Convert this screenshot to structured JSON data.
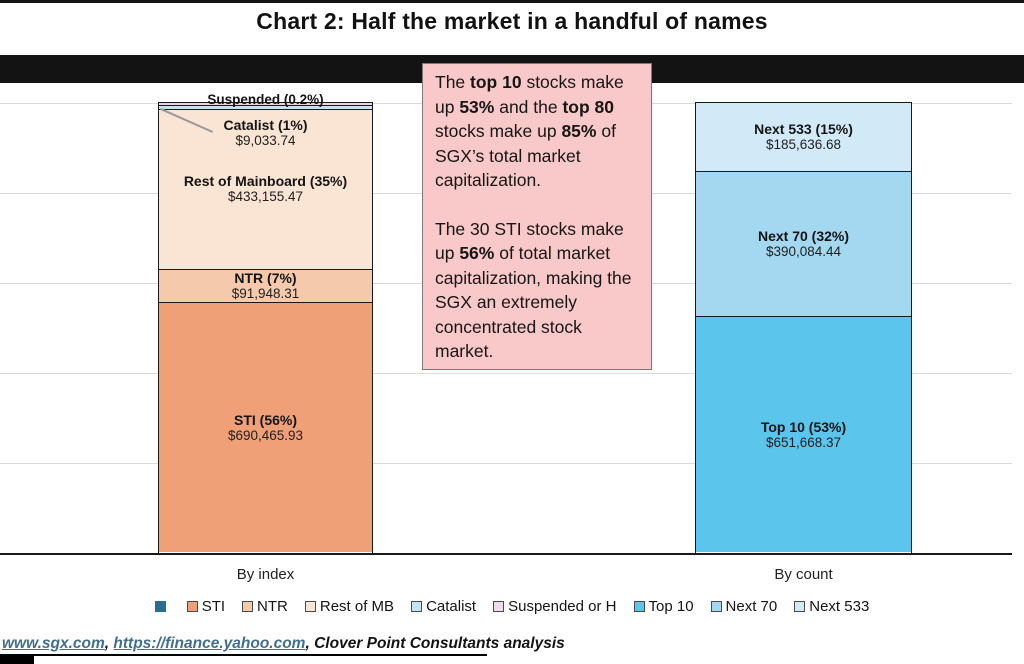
{
  "title": "Chart 2: Half the market in a handful of names",
  "annotation": {
    "bg_color": "#F9C8C8",
    "paragraphs": [
      [
        {
          "t": "The ",
          "b": false
        },
        {
          "t": "top 10",
          "b": true
        },
        {
          "t": " stocks make up ",
          "b": false
        },
        {
          "t": "53%",
          "b": true
        },
        {
          "t": " and the ",
          "b": false
        },
        {
          "t": "top 80",
          "b": true
        },
        {
          "t": " stocks make up ",
          "b": false
        },
        {
          "t": "85%",
          "b": true
        },
        {
          "t": " of SGX’s total market capitalization.",
          "b": false
        }
      ],
      [
        {
          "t": "The 30 STI stocks make up ",
          "b": false
        },
        {
          "t": "56%",
          "b": true
        },
        {
          "t": " of total market capitalization, making the SGX an extremely concentrated stock market.",
          "b": false
        }
      ]
    ]
  },
  "bars": {
    "by_index": {
      "axis_label": "By index",
      "suspended_label": "Suspended (0.2%)",
      "catalist": {
        "name": "Catalist (1%)",
        "value": "$9,033.74"
      },
      "rest_of_mainboard": {
        "name": "Rest of Mainboard (35%)",
        "value": "$433,155.47"
      },
      "ntr": {
        "name": "NTR (7%)",
        "value": "$91,948.31"
      },
      "sti": {
        "name": "STI (56%)",
        "value": "$690,465.93"
      }
    },
    "by_count": {
      "axis_label": "By count",
      "next533": {
        "name": "Next 533 (15%)",
        "value": "$185,636.68"
      },
      "next70": {
        "name": "Next 70 (32%)",
        "value": "$390,084.44"
      },
      "top10": {
        "name": "Top 10 (53%)",
        "value": "$651,668.37"
      }
    }
  },
  "legend": {
    "items": [
      {
        "label": "",
        "color": "#2A6D92"
      },
      {
        "label": "STI",
        "color": "#EFA077"
      },
      {
        "label": "NTR",
        "color": "#F5C9AB"
      },
      {
        "label": "Rest of MB",
        "color": "#FAE4D3"
      },
      {
        "label": "Catalist",
        "color": "#C6E3F1"
      },
      {
        "label": "Suspended or H",
        "color": "#EFD9EB"
      },
      {
        "label": "Top 10",
        "color": "#5CC5EC"
      },
      {
        "label": "Next 70",
        "color": "#A3D8F0"
      },
      {
        "label": "Next 533",
        "color": "#D2EAF8"
      }
    ]
  },
  "source": {
    "link1": "www.sgx.com",
    "sep1": ", ",
    "link2": "https://finance.yahoo.com",
    "sep2": ", ",
    "credit": "Clover Point Consultants analysis"
  },
  "chart_data": {
    "type": "bar",
    "stacked": true,
    "title": "Chart 2: Half the market in a handful of names",
    "categories": [
      "By index",
      "By count"
    ],
    "ylabel": "",
    "xlabel": "",
    "ylim_percent": [
      0,
      100
    ],
    "gridlines_percent": [
      0,
      20,
      40,
      60,
      80,
      100
    ],
    "series": [
      {
        "name": "STI",
        "category": "By index",
        "percent": 56,
        "value": 690465.93,
        "color": "#EFA077"
      },
      {
        "name": "NTR",
        "category": "By index",
        "percent": 7,
        "value": 91948.31,
        "color": "#F5C9AB"
      },
      {
        "name": "Rest of Mainboard",
        "category": "By index",
        "percent": 35,
        "value": 433155.47,
        "color": "#FAE4D3"
      },
      {
        "name": "Catalist",
        "category": "By index",
        "percent": 1,
        "value": 9033.74,
        "color": "#C6E3F1"
      },
      {
        "name": "Suspended",
        "category": "By index",
        "percent": 0.2,
        "color": "#EDD2E3"
      },
      {
        "name": "Top 10",
        "category": "By count",
        "percent": 53,
        "value": 651668.37,
        "color": "#5CC5EC"
      },
      {
        "name": "Next 70",
        "category": "By count",
        "percent": 32,
        "value": 390084.44,
        "color": "#A3D8F0"
      },
      {
        "name": "Next 533",
        "category": "By count",
        "percent": 15,
        "value": 185636.68,
        "color": "#D2EAF8"
      }
    ],
    "annotation_text": "The top 10 stocks make up 53% and the top 80 stocks make up 85% of SGX’s total market capitalization. The 30 STI stocks make up 56% of total market capitalization, making the SGX an extremely concentrated stock market.",
    "legend_position": "bottom"
  }
}
